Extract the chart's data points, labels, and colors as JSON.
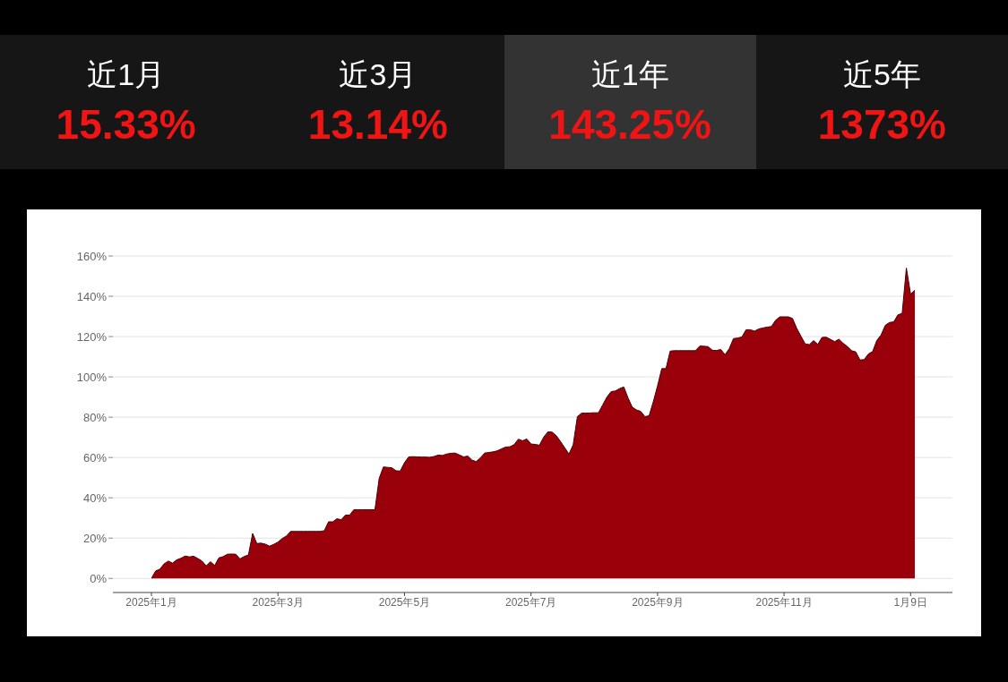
{
  "chart_data": [
    {
      "type": "other",
      "categories": [
        "近1月",
        "近3月",
        "近1年",
        "近5年"
      ],
      "value_labels": [
        "15.33%",
        "13.14%",
        "143.25%",
        "1373%"
      ],
      "color": "#f01414",
      "colors": [
        "#161616",
        "#161616",
        "#333333",
        "#161616"
      ]
    },
    {
      "type": "area",
      "color": "#990009",
      "grid": "y",
      "ylim": [
        -7,
        160
      ],
      "yticks": [
        {
          "value": 0,
          "label": "0%"
        },
        {
          "value": 20,
          "label": "20%"
        },
        {
          "value": 40,
          "label": "40%"
        },
        {
          "value": 60,
          "label": "60%"
        },
        {
          "value": 80,
          "label": "80%"
        },
        {
          "value": 100,
          "label": "100%"
        },
        {
          "value": 120,
          "label": "120%"
        },
        {
          "value": 140,
          "label": "140%"
        },
        {
          "value": 160,
          "label": "160%"
        }
      ],
      "categories": [
        "2025年1月",
        null,
        null,
        null,
        null,
        null,
        null,
        null,
        null,
        null,
        null,
        null,
        null,
        null,
        null,
        null,
        null,
        null,
        null,
        null,
        null,
        null,
        null,
        null,
        null,
        null,
        null,
        null,
        null,
        null,
        "2025年3月",
        null,
        null,
        null,
        null,
        null,
        null,
        null,
        null,
        null,
        null,
        null,
        null,
        null,
        null,
        null,
        null,
        null,
        null,
        null,
        null,
        null,
        null,
        null,
        null,
        null,
        null,
        null,
        null,
        null,
        "2025年5月",
        null,
        null,
        null,
        null,
        null,
        null,
        null,
        null,
        null,
        null,
        null,
        null,
        null,
        null,
        null,
        null,
        null,
        null,
        null,
        null,
        null,
        null,
        null,
        null,
        null,
        null,
        null,
        null,
        null,
        "2025年7月",
        null,
        null,
        null,
        null,
        null,
        null,
        null,
        null,
        null,
        null,
        null,
        null,
        null,
        null,
        null,
        null,
        null,
        null,
        null,
        null,
        null,
        null,
        null,
        null,
        null,
        null,
        null,
        null,
        null,
        "2025年9月",
        null,
        null,
        null,
        null,
        null,
        null,
        null,
        null,
        null,
        null,
        null,
        null,
        null,
        null,
        null,
        null,
        null,
        null,
        null,
        null,
        null,
        null,
        null,
        null,
        null,
        null,
        null,
        null,
        null,
        "2025年11月",
        null,
        null,
        null,
        null,
        null,
        null,
        null,
        null,
        null,
        null,
        null,
        null,
        null,
        null,
        null,
        null,
        null,
        null,
        null,
        null,
        null,
        null,
        null,
        null,
        null,
        null,
        null,
        null,
        null,
        "1月9日",
        null
      ],
      "values": [
        0,
        3.7,
        4.6,
        7.2,
        8.6,
        7.6,
        9.2,
        10.0,
        11.1,
        10.7,
        11.0,
        9.9,
        8.6,
        6.2,
        8.3,
        6.4,
        10.2,
        10.8,
        12.0,
        12.1,
        12.0,
        9.7,
        10.9,
        11.6,
        22.3,
        17.3,
        17.5,
        17.0,
        16.0,
        16.9,
        18.0,
        19.8,
        21.0,
        23.3,
        23.3,
        23.3,
        23.3,
        23.3,
        23.3,
        23.3,
        23.3,
        23.7,
        28.1,
        28.1,
        29.6,
        29.1,
        31.4,
        31.4,
        34.1,
        34.1,
        34.1,
        34.1,
        34.1,
        34.1,
        49.6,
        55.3,
        55.1,
        54.9,
        53.4,
        53.3,
        57.4,
        60.3,
        60.4,
        60.3,
        60.2,
        60.2,
        60.1,
        60.5,
        61.2,
        61.0,
        61.7,
        62.1,
        62.2,
        61.3,
        60.3,
        60.7,
        58.7,
        58.0,
        59.8,
        62.2,
        62.5,
        62.8,
        63.3,
        64.3,
        65.2,
        65.3,
        66.4,
        69.1,
        68.3,
        69.2,
        66.7,
        66.5,
        66.1,
        70.1,
        72.7,
        72.6,
        70.8,
        67.9,
        64.8,
        61.7,
        66.3,
        80.3,
        82.0,
        82.0,
        82.1,
        82.2,
        82.2,
        86.1,
        90.0,
        92.7,
        93.0,
        94.2,
        95.0,
        89.6,
        85.0,
        83.6,
        82.9,
        80.3,
        80.7,
        87.7,
        95.5,
        104.1,
        104.1,
        112.8,
        113,
        113,
        113,
        113,
        113,
        113,
        115.3,
        115.2,
        115.0,
        113.2,
        113.1,
        113.6,
        111.0,
        114.0,
        119.0,
        119.3,
        119.8,
        123.4,
        123.4,
        122.7,
        123.8,
        124.3,
        124.7,
        125.0,
        128.1,
        129.8,
        129.8,
        129.8,
        129.0,
        124.1,
        120.2,
        116.4,
        116.0,
        118.0,
        116.1,
        119.6,
        119.7,
        118.6,
        117.5,
        118.7,
        116.7,
        115.1,
        113.0,
        112.4,
        108.4,
        108.6,
        111.4,
        112.6,
        118.1,
        120.8,
        125.6,
        127.0,
        127.3,
        130.8,
        131.5,
        154,
        141.0,
        143
      ]
    }
  ]
}
